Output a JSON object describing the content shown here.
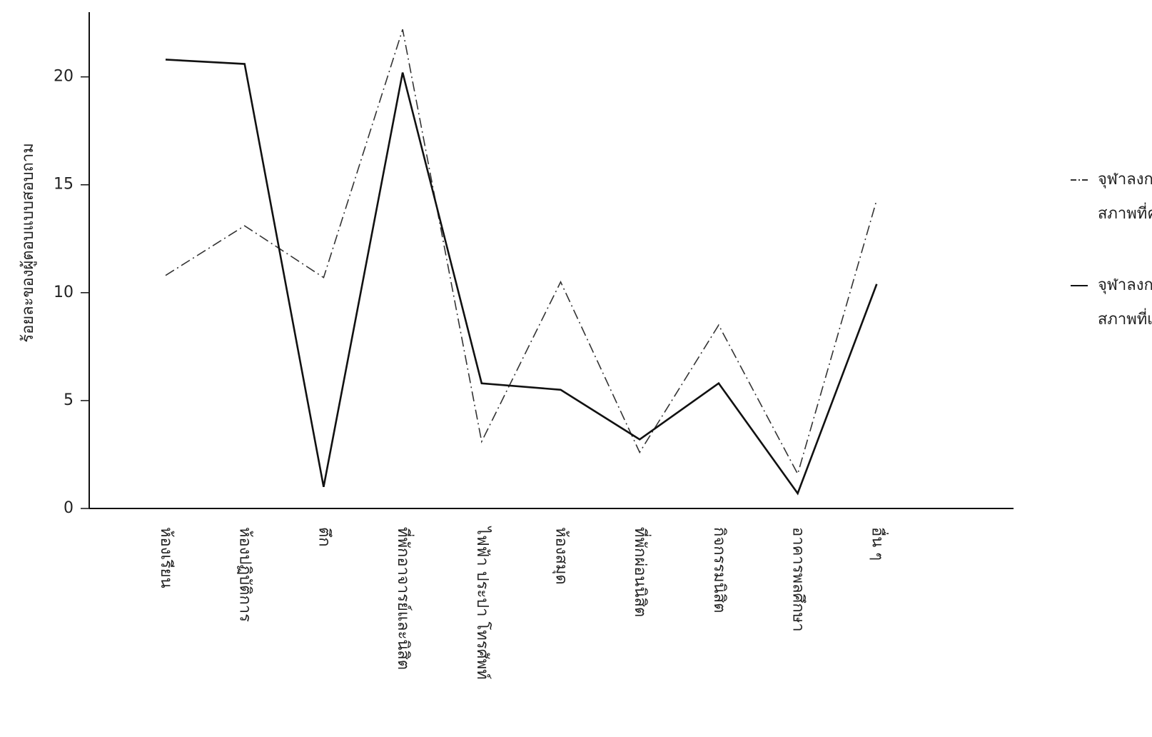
{
  "chart_data": {
    "type": "line",
    "y_label": "ร้อยละของผู้ตอบแบบสอบถาม",
    "categories": [
      "ห้องเรียน",
      "ห้องปฏิบัติการ",
      "ตึก",
      "ที่พักอาจารย์และนิสิต",
      "ไฟฟ้า ประปา โทรศัพท์",
      "ห้องสมุด",
      "ที่พักผ่อนนิสิต",
      "กิจกรรมนิสิต",
      "อาคารพลศึกษา",
      "อื่น ๆ"
    ],
    "series": [
      {
        "name": [
          "จุฬาลงกรณ์มหาวิทยาลัย",
          "สภาพที่ควรจะเป็น"
        ],
        "color": "#333333",
        "dash": true,
        "values": [
          10.8,
          13.1,
          10.7,
          22.2,
          3.1,
          10.5,
          2.6,
          8.5,
          1.6,
          14.3
        ]
      },
      {
        "name": [
          "จุฬาลงกรณ์มหาวิทยาลัย",
          "สภาพที่เป็นจริง"
        ],
        "color": "#111111",
        "dash": false,
        "values": [
          20.8,
          20.6,
          1,
          20.2,
          5.8,
          5.5,
          3.2,
          5.8,
          0.7,
          10.4
        ]
      }
    ],
    "ylim": [
      0,
      23
    ],
    "yticks": [
      0,
      5,
      10,
      15,
      20
    ],
    "grid": false,
    "legend": "right"
  }
}
